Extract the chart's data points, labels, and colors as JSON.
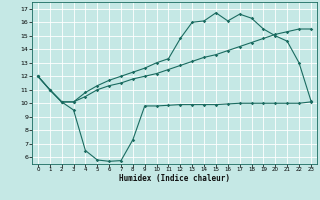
{
  "xlabel": "Humidex (Indice chaleur)",
  "background_color": "#c5e8e5",
  "grid_color": "#b0d8d5",
  "line_color": "#1a6b60",
  "x_ticks": [
    0,
    1,
    2,
    3,
    4,
    5,
    6,
    7,
    8,
    9,
    10,
    11,
    12,
    13,
    14,
    15,
    16,
    17,
    18,
    19,
    20,
    21,
    22,
    23
  ],
  "y_ticks": [
    6,
    7,
    8,
    9,
    10,
    11,
    12,
    13,
    14,
    15,
    16,
    17
  ],
  "ylim": [
    5.5,
    17.5
  ],
  "xlim": [
    -0.5,
    23.5
  ],
  "line1_y": [
    12,
    11,
    10.1,
    9.5,
    6.5,
    5.8,
    5.7,
    5.75,
    7.3,
    9.8,
    9.8,
    9.85,
    9.9,
    9.9,
    9.9,
    9.9,
    9.95,
    10.0,
    10.0,
    10.0,
    10.0,
    10.0,
    10.0,
    10.1
  ],
  "line2_y": [
    12,
    11,
    10.1,
    10.1,
    10.5,
    11.0,
    11.3,
    11.5,
    11.8,
    12.0,
    12.2,
    12.5,
    12.8,
    13.1,
    13.4,
    13.6,
    13.9,
    14.2,
    14.5,
    14.8,
    15.1,
    15.3,
    15.5,
    15.5
  ],
  "line3_y": [
    12,
    11,
    10.1,
    10.1,
    10.8,
    11.3,
    11.7,
    12.0,
    12.3,
    12.6,
    13.0,
    13.3,
    14.8,
    16.0,
    16.1,
    16.7,
    16.1,
    16.6,
    16.3,
    15.5,
    15.0,
    14.6,
    13.0,
    10.2
  ]
}
